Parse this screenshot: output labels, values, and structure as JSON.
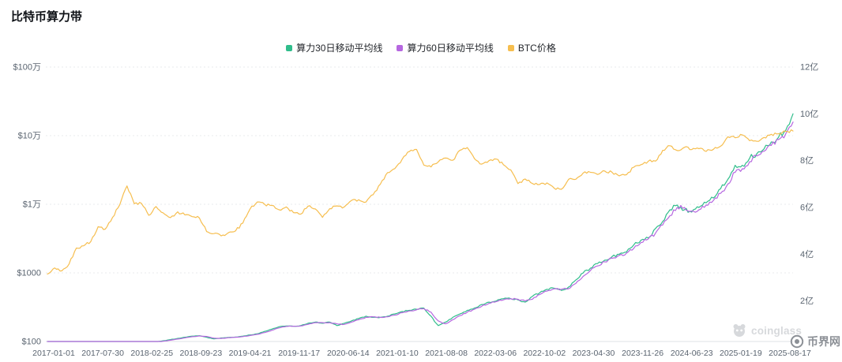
{
  "page": {
    "title": "比特币算力带",
    "background": "#ffffff"
  },
  "legend": {
    "items": [
      {
        "label": "算力30日移动平均线",
        "color": "#30BD8B"
      },
      {
        "label": "算力60日移动平均线",
        "color": "#B667E0"
      },
      {
        "label": "BTC价格",
        "color": "#F6BE4F"
      }
    ]
  },
  "chart_data": {
    "type": "line",
    "title": "比特币算力带",
    "grid": "horizontal-dotted",
    "legend_position": "top-center",
    "x_tick_labels": [
      "2017-01-01",
      "2017-07-30",
      "2018-02-25",
      "2018-09-23",
      "2019-04-21",
      "2019-11-17",
      "2020-06-14",
      "2021-01-10",
      "2021-08-08",
      "2022-03-06",
      "2022-10-02",
      "2023-04-30",
      "2023-11-26",
      "2024-06-23",
      "2025-01-19",
      "2025-08-17"
    ],
    "x_sampling": "monthly from 2017-01 to 2025-08",
    "left_axis": {
      "scale": "log",
      "unit": "USD",
      "tick_labels": [
        "$100万",
        "$10万",
        "$1万",
        "$1000",
        "$100"
      ],
      "tick_values": [
        1000000,
        100000,
        10000,
        1000,
        100
      ],
      "range": [
        100,
        1000000
      ]
    },
    "right_axis": {
      "scale": "linear",
      "unit": "亿",
      "tick_labels": [
        "12亿",
        "10亿",
        "8亿",
        "6亿",
        "4亿",
        "2亿"
      ],
      "tick_values": [
        12,
        10,
        8,
        6,
        4,
        2
      ],
      "range": [
        0,
        12
      ]
    },
    "series": [
      {
        "name": "算力30日移动平均线",
        "axis": "right",
        "color": "#30BD8B",
        "values": [
          0.025,
          0.03,
          0.035,
          0.04,
          0.045,
          0.05,
          0.06,
          0.07,
          0.08,
          0.1,
          0.11,
          0.13,
          0.15,
          0.18,
          0.22,
          0.26,
          0.3,
          0.35,
          0.4,
          0.45,
          0.5,
          0.52,
          0.45,
          0.38,
          0.42,
          0.44,
          0.46,
          0.5,
          0.55,
          0.6,
          0.7,
          0.8,
          0.9,
          0.93,
          0.92,
          0.95,
          1.05,
          1.1,
          1.05,
          1.1,
          0.95,
          1.05,
          1.15,
          1.25,
          1.35,
          1.3,
          1.3,
          1.35,
          1.45,
          1.55,
          1.6,
          1.65,
          1.7,
          1.35,
          0.95,
          1.1,
          1.3,
          1.45,
          1.6,
          1.7,
          1.85,
          1.95,
          2.0,
          2.1,
          2.1,
          2.05,
          1.95,
          2.2,
          2.35,
          2.5,
          2.55,
          2.45,
          2.6,
          2.9,
          3.2,
          3.4,
          3.6,
          3.75,
          3.9,
          4.0,
          4.1,
          4.4,
          4.6,
          4.7,
          5.1,
          5.4,
          5.9,
          6.1,
          5.9,
          5.8,
          6.0,
          6.2,
          6.4,
          6.8,
          7.2,
          7.8,
          7.8,
          8.1,
          8.3,
          8.5,
          8.8,
          9.0,
          9.3,
          10.0
        ]
      },
      {
        "name": "算力60日移动平均线",
        "axis": "right",
        "color": "#B667E0",
        "values": [
          0.025,
          0.028,
          0.033,
          0.038,
          0.043,
          0.048,
          0.055,
          0.065,
          0.075,
          0.09,
          0.105,
          0.12,
          0.14,
          0.165,
          0.2,
          0.24,
          0.28,
          0.325,
          0.375,
          0.425,
          0.475,
          0.51,
          0.485,
          0.415,
          0.4,
          0.43,
          0.45,
          0.48,
          0.525,
          0.575,
          0.65,
          0.75,
          0.85,
          0.915,
          0.925,
          0.935,
          1.0,
          1.075,
          1.075,
          1.075,
          1.025,
          1.0,
          1.1,
          1.2,
          1.3,
          1.325,
          1.3,
          1.325,
          1.4,
          1.5,
          1.575,
          1.625,
          1.675,
          1.525,
          1.15,
          1.025,
          1.2,
          1.375,
          1.525,
          1.65,
          1.775,
          1.9,
          1.975,
          2.05,
          2.1,
          2.075,
          2.0,
          2.075,
          2.275,
          2.425,
          2.525,
          2.5,
          2.525,
          2.75,
          3.05,
          3.3,
          3.5,
          3.675,
          3.825,
          3.95,
          4.05,
          4.25,
          4.5,
          4.65,
          4.9,
          5.25,
          5.65,
          6.0,
          6.0,
          5.85,
          5.9,
          6.1,
          6.3,
          6.6,
          7.0,
          7.5,
          7.65,
          7.95,
          8.2,
          8.4,
          8.65,
          8.9,
          9.15,
          9.65
        ]
      },
      {
        "name": "BTC价格",
        "axis": "left",
        "color": "#F6BE4F",
        "values": [
          960,
          1180,
          1070,
          1350,
          2300,
          2480,
          2870,
          4700,
          4350,
          6450,
          9900,
          18500,
          10200,
          10300,
          6900,
          9250,
          7500,
          6400,
          7750,
          7000,
          6600,
          6300,
          4000,
          3740,
          3460,
          3850,
          4100,
          5320,
          8560,
          10800,
          10000,
          9600,
          8300,
          9150,
          7550,
          7190,
          9350,
          8550,
          6440,
          8630,
          9450,
          9140,
          11350,
          11650,
          10780,
          13800,
          19700,
          29000,
          33100,
          45200,
          58800,
          63000,
          37300,
          35040,
          41500,
          47100,
          43800,
          61300,
          67000,
          46200,
          38480,
          43190,
          45540,
          37650,
          31800,
          19985,
          23300,
          20050,
          19430,
          20490,
          17160,
          16550,
          23130,
          23140,
          28480,
          29230,
          27220,
          30480,
          29230,
          25930,
          26970,
          34670,
          37710,
          42270,
          42580,
          61200,
          71330,
          60640,
          67540,
          62680,
          64620,
          58970,
          63330,
          70220,
          96400,
          93430,
          102400,
          84380,
          82550,
          94180,
          104600,
          107100,
          115800,
          117000
        ]
      }
    ]
  },
  "watermark": {
    "coinglass": "coinglass",
    "brand": "币界网"
  }
}
